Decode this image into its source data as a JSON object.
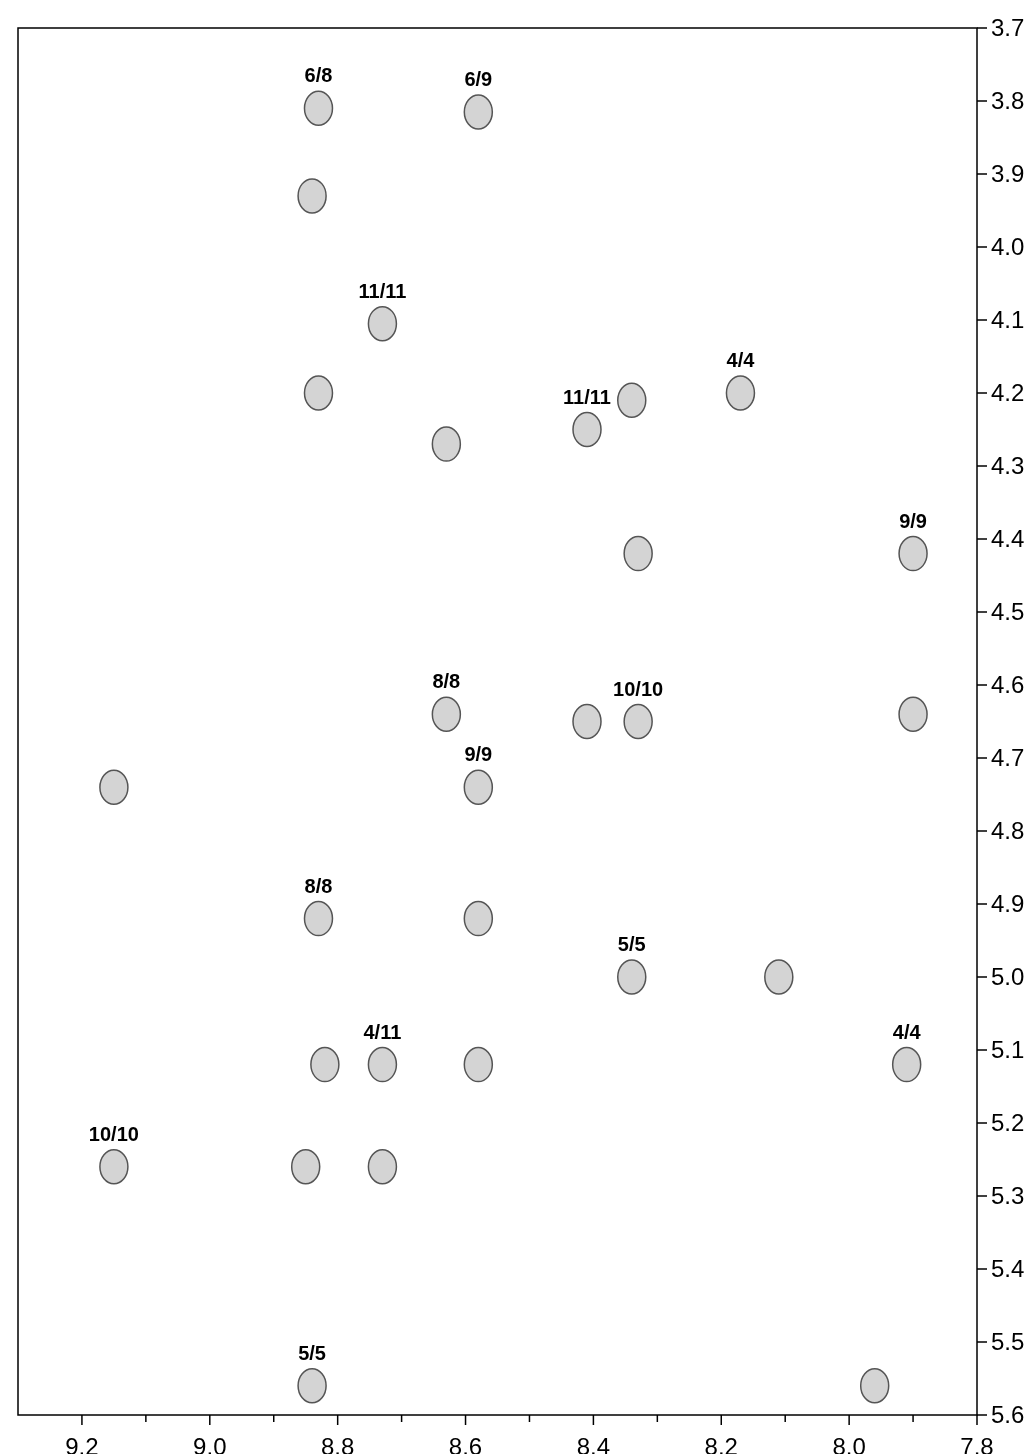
{
  "chart_data": {
    "type": "scatter",
    "xlim": [
      9.3,
      7.8
    ],
    "ylim": [
      5.6,
      3.7
    ],
    "marker": "circle",
    "xticks": [
      9.2,
      {
        "value": 9.1,
        "label": null
      },
      "9.0",
      {
        "value": 8.9,
        "label": null
      },
      8.8,
      {
        "value": 8.7,
        "label": null
      },
      8.6,
      {
        "value": 8.5,
        "label": null
      },
      8.4,
      {
        "value": 8.3,
        "label": null
      },
      8.2,
      {
        "value": 8.1,
        "label": null
      },
      "8.0",
      {
        "value": 7.9,
        "label": null
      },
      7.8
    ],
    "yticks": [
      3.7,
      3.8,
      3.9,
      {
        "value": 4.0,
        "label": "4.0"
      },
      4.1,
      4.2,
      4.3,
      4.4,
      4.5,
      4.6,
      4.7,
      4.8,
      4.9,
      {
        "value": 5.0,
        "label": "5.0"
      },
      5.1,
      5.2,
      5.3,
      5.4,
      5.5,
      5.6
    ],
    "series": [
      {
        "color": "#555555",
        "x": [
          8.83,
          8.58,
          8.84,
          8.73,
          8.83,
          8.63,
          8.41,
          8.34,
          8.17,
          8.33,
          7.9,
          8.63,
          8.41,
          8.33,
          7.9,
          9.15,
          8.58,
          8.83,
          8.58,
          8.34,
          8.11,
          8.82,
          8.73,
          8.58,
          7.91,
          9.15,
          8.85,
          8.73,
          8.84,
          7.96
        ],
        "values": [
          3.81,
          3.815,
          3.93,
          4.105,
          4.2,
          4.27,
          4.25,
          4.21,
          4.2,
          4.42,
          4.42,
          4.64,
          4.65,
          4.65,
          4.64,
          4.74,
          4.74,
          4.92,
          4.92,
          5.0,
          5.0,
          5.12,
          5.12,
          5.12,
          5.12,
          5.26,
          5.26,
          5.26,
          5.56,
          5.56
        ]
      }
    ],
    "annotations": [
      {
        "text": "6/8",
        "x": 8.83,
        "y": 3.81
      },
      {
        "text": "6/9",
        "x": 8.58,
        "y": 3.815
      },
      {
        "text": "11/11",
        "x": 8.73,
        "y": 4.105
      },
      {
        "text": "11/11",
        "x": 8.41,
        "y": 4.25
      },
      {
        "text": "4/4",
        "x": 8.17,
        "y": 4.2
      },
      {
        "text": "9/9",
        "x": 7.9,
        "y": 4.42
      },
      {
        "text": "8/8",
        "x": 8.63,
        "y": 4.64
      },
      {
        "text": "10/10",
        "x": 8.33,
        "y": 4.65
      },
      {
        "text": "9/9",
        "x": 8.58,
        "y": 4.74
      },
      {
        "text": "8/8",
        "x": 8.83,
        "y": 4.92
      },
      {
        "text": "5/5",
        "x": 8.34,
        "y": 5.0
      },
      {
        "text": "4/11",
        "x": 8.73,
        "y": 5.12
      },
      {
        "text": "4/4",
        "x": 7.91,
        "y": 5.12
      },
      {
        "text": "10/10",
        "x": 9.15,
        "y": 5.26
      },
      {
        "text": "5/5",
        "x": 8.84,
        "y": 5.56
      }
    ]
  }
}
